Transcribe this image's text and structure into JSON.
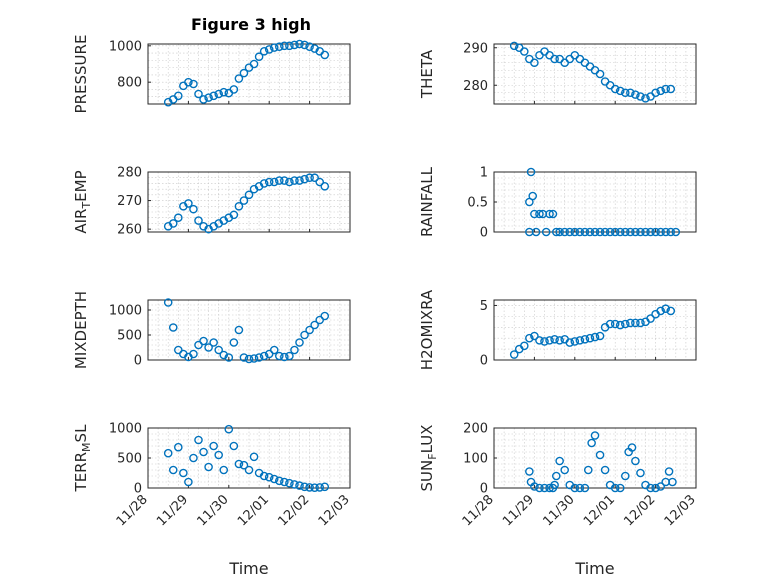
{
  "figure": {
    "title": "Figure 3 high"
  },
  "chart_data": [
    {
      "type": "scatter",
      "ylabel": "PRESSURE",
      "ylim": [
        680,
        1010
      ],
      "yticks": [
        800,
        1000
      ],
      "grid": true,
      "color": "#0072bd",
      "x": [
        "2014-11-28T12:00",
        "2014-11-28T15:00",
        "2014-11-28T18:00",
        "2014-11-28T21:00",
        "2014-11-29T00:00",
        "2014-11-29T03:00",
        "2014-11-29T06:00",
        "2014-11-29T09:00",
        "2014-11-29T12:00",
        "2014-11-29T15:00",
        "2014-11-29T18:00",
        "2014-11-29T21:00",
        "2014-11-30T00:00",
        "2014-11-30T03:00",
        "2014-11-30T06:00",
        "2014-11-30T09:00",
        "2014-11-30T12:00",
        "2014-11-30T15:00",
        "2014-11-30T18:00",
        "2014-11-30T21:00",
        "2014-12-01T00:00",
        "2014-12-01T03:00",
        "2014-12-01T06:00",
        "2014-12-01T09:00",
        "2014-12-01T12:00",
        "2014-12-01T15:00",
        "2014-12-01T18:00",
        "2014-12-01T21:00",
        "2014-12-02T00:00",
        "2014-12-02T03:00",
        "2014-12-02T06:00",
        "2014-12-02T09:00"
      ],
      "y": [
        690,
        705,
        725,
        780,
        800,
        790,
        735,
        705,
        715,
        725,
        735,
        745,
        740,
        760,
        820,
        850,
        880,
        900,
        940,
        970,
        980,
        990,
        995,
        1000,
        1000,
        1005,
        1010,
        1005,
        995,
        985,
        970,
        950
      ]
    },
    {
      "type": "scatter",
      "ylabel": "THETA",
      "ylim": [
        275,
        291
      ],
      "yticks": [
        280,
        290
      ],
      "grid": true,
      "color": "#0072bd",
      "x": [
        "2014-11-28T12:00",
        "2014-11-28T15:00",
        "2014-11-28T18:00",
        "2014-11-28T21:00",
        "2014-11-29T00:00",
        "2014-11-29T03:00",
        "2014-11-29T06:00",
        "2014-11-29T09:00",
        "2014-11-29T12:00",
        "2014-11-29T15:00",
        "2014-11-29T18:00",
        "2014-11-29T21:00",
        "2014-11-30T00:00",
        "2014-11-30T03:00",
        "2014-11-30T06:00",
        "2014-11-30T09:00",
        "2014-11-30T12:00",
        "2014-11-30T15:00",
        "2014-11-30T18:00",
        "2014-11-30T21:00",
        "2014-12-01T00:00",
        "2014-12-01T03:00",
        "2014-12-01T06:00",
        "2014-12-01T09:00",
        "2014-12-01T12:00",
        "2014-12-01T15:00",
        "2014-12-01T18:00",
        "2014-12-01T21:00",
        "2014-12-02T00:00",
        "2014-12-02T03:00",
        "2014-12-02T06:00",
        "2014-12-02T09:00"
      ],
      "y": [
        290.5,
        290,
        289,
        287,
        286,
        288,
        289,
        288,
        287,
        287,
        286,
        287,
        288,
        287,
        286,
        285,
        284,
        283,
        281,
        280,
        279,
        278.5,
        278,
        278,
        277.5,
        277,
        276.5,
        277,
        278,
        278.5,
        279,
        279
      ]
    },
    {
      "type": "scatter",
      "ylabel": "AIR_TEMP",
      "ylim": [
        259,
        280
      ],
      "yticks": [
        260,
        270,
        280
      ],
      "grid": true,
      "color": "#0072bd",
      "x": [
        "2014-11-28T12:00",
        "2014-11-28T15:00",
        "2014-11-28T18:00",
        "2014-11-28T21:00",
        "2014-11-29T00:00",
        "2014-11-29T03:00",
        "2014-11-29T06:00",
        "2014-11-29T09:00",
        "2014-11-29T12:00",
        "2014-11-29T15:00",
        "2014-11-29T18:00",
        "2014-11-29T21:00",
        "2014-11-30T00:00",
        "2014-11-30T03:00",
        "2014-11-30T06:00",
        "2014-11-30T09:00",
        "2014-11-30T12:00",
        "2014-11-30T15:00",
        "2014-11-30T18:00",
        "2014-11-30T21:00",
        "2014-12-01T00:00",
        "2014-12-01T03:00",
        "2014-12-01T06:00",
        "2014-12-01T09:00",
        "2014-12-01T12:00",
        "2014-12-01T15:00",
        "2014-12-01T18:00",
        "2014-12-01T21:00",
        "2014-12-02T00:00",
        "2014-12-02T03:00",
        "2014-12-02T06:00",
        "2014-12-02T09:00"
      ],
      "y": [
        261,
        262,
        264,
        268,
        269,
        267,
        263,
        261,
        260,
        261,
        262,
        263,
        264,
        265,
        268,
        270,
        272,
        274,
        275,
        276,
        276.5,
        276.5,
        277,
        277,
        276.5,
        277,
        277,
        277.5,
        278,
        278,
        276.5,
        275
      ]
    },
    {
      "type": "scatter",
      "ylabel": "RAINFALL",
      "ylim": [
        0,
        1
      ],
      "yticks": [
        0,
        0.5,
        1
      ],
      "grid": true,
      "color": "#0072bd",
      "x": [
        "2014-11-28T21:00",
        "2014-11-28T21:00",
        "2014-11-28T22:00",
        "2014-11-28T23:00",
        "2014-11-29T00:00",
        "2014-11-29T01:00",
        "2014-11-29T03:00",
        "2014-11-29T05:00",
        "2014-11-29T07:00",
        "2014-11-29T09:00",
        "2014-11-29T11:00",
        "2014-11-29T13:00",
        "2014-11-29T15:00",
        "2014-11-29T18:00",
        "2014-11-29T21:00",
        "2014-11-30T00:00",
        "2014-11-30T03:00",
        "2014-11-30T06:00",
        "2014-11-30T09:00",
        "2014-11-30T12:00",
        "2014-11-30T15:00",
        "2014-11-30T18:00",
        "2014-11-30T21:00",
        "2014-12-01T00:00",
        "2014-12-01T03:00",
        "2014-12-01T06:00",
        "2014-12-01T09:00",
        "2014-12-01T12:00",
        "2014-12-01T15:00",
        "2014-12-01T18:00",
        "2014-12-01T21:00",
        "2014-12-02T00:00",
        "2014-12-02T03:00",
        "2014-12-02T06:00",
        "2014-12-02T09:00",
        "2014-12-02T12:00"
      ],
      "y": [
        0,
        0.5,
        1.0,
        0.6,
        0.3,
        0,
        0.3,
        0.3,
        0,
        0.3,
        0.3,
        0,
        0,
        0,
        0,
        0,
        0,
        0,
        0,
        0,
        0,
        0,
        0,
        0,
        0,
        0,
        0,
        0,
        0,
        0,
        0,
        0,
        0,
        0,
        0,
        0
      ]
    },
    {
      "type": "scatter",
      "ylabel": "MIXDEPTH",
      "ylim": [
        0,
        1200
      ],
      "yticks": [
        0,
        500,
        1000
      ],
      "grid": true,
      "color": "#0072bd",
      "x": [
        "2014-11-28T12:00",
        "2014-11-28T15:00",
        "2014-11-28T18:00",
        "2014-11-28T21:00",
        "2014-11-29T00:00",
        "2014-11-29T03:00",
        "2014-11-29T06:00",
        "2014-11-29T09:00",
        "2014-11-29T12:00",
        "2014-11-29T15:00",
        "2014-11-29T18:00",
        "2014-11-29T21:00",
        "2014-11-30T00:00",
        "2014-11-30T03:00",
        "2014-11-30T06:00",
        "2014-11-30T09:00",
        "2014-11-30T12:00",
        "2014-11-30T15:00",
        "2014-11-30T18:00",
        "2014-11-30T21:00",
        "2014-12-01T00:00",
        "2014-12-01T03:00",
        "2014-12-01T06:00",
        "2014-12-01T09:00",
        "2014-12-01T12:00",
        "2014-12-01T15:00",
        "2014-12-01T18:00",
        "2014-12-01T21:00",
        "2014-12-02T00:00",
        "2014-12-02T03:00",
        "2014-12-02T06:00",
        "2014-12-02T09:00"
      ],
      "y": [
        1150,
        650,
        200,
        120,
        60,
        120,
        300,
        380,
        250,
        350,
        200,
        100,
        50,
        350,
        600,
        50,
        20,
        30,
        50,
        80,
        120,
        200,
        80,
        60,
        80,
        200,
        350,
        500,
        600,
        700,
        800,
        880
      ]
    },
    {
      "type": "scatter",
      "ylabel": "H2OMIXRA",
      "ylim": [
        0,
        5.5
      ],
      "yticks": [
        0,
        5
      ],
      "grid": true,
      "color": "#0072bd",
      "x": [
        "2014-11-28T12:00",
        "2014-11-28T15:00",
        "2014-11-28T18:00",
        "2014-11-28T21:00",
        "2014-11-29T00:00",
        "2014-11-29T03:00",
        "2014-11-29T06:00",
        "2014-11-29T09:00",
        "2014-11-29T12:00",
        "2014-11-29T15:00",
        "2014-11-29T18:00",
        "2014-11-29T21:00",
        "2014-11-30T00:00",
        "2014-11-30T03:00",
        "2014-11-30T06:00",
        "2014-11-30T09:00",
        "2014-11-30T12:00",
        "2014-11-30T15:00",
        "2014-11-30T18:00",
        "2014-11-30T21:00",
        "2014-12-01T00:00",
        "2014-12-01T03:00",
        "2014-12-01T06:00",
        "2014-12-01T09:00",
        "2014-12-01T12:00",
        "2014-12-01T15:00",
        "2014-12-01T18:00",
        "2014-12-01T21:00",
        "2014-12-02T00:00",
        "2014-12-02T03:00",
        "2014-12-02T06:00",
        "2014-12-02T09:00"
      ],
      "y": [
        0.5,
        1.0,
        1.3,
        2.0,
        2.2,
        1.8,
        1.7,
        1.8,
        1.9,
        1.8,
        1.9,
        1.6,
        1.7,
        1.8,
        1.9,
        2.0,
        2.1,
        2.2,
        3.0,
        3.3,
        3.3,
        3.2,
        3.3,
        3.4,
        3.4,
        3.4,
        3.5,
        3.8,
        4.2,
        4.5,
        4.7,
        4.5
      ]
    },
    {
      "type": "scatter",
      "ylabel": "TERR_MSL",
      "ylim": [
        0,
        1000
      ],
      "yticks": [
        0,
        500,
        1000
      ],
      "grid": true,
      "color": "#0072bd",
      "xticks": [
        "11/28",
        "11/29",
        "11/30",
        "12/01",
        "12/02",
        "12/03"
      ],
      "xlabel": "Time",
      "x": [
        "2014-11-28T12:00",
        "2014-11-28T15:00",
        "2014-11-28T18:00",
        "2014-11-28T21:00",
        "2014-11-29T00:00",
        "2014-11-29T03:00",
        "2014-11-29T06:00",
        "2014-11-29T09:00",
        "2014-11-29T12:00",
        "2014-11-29T15:00",
        "2014-11-29T18:00",
        "2014-11-29T21:00",
        "2014-11-30T00:00",
        "2014-11-30T03:00",
        "2014-11-30T06:00",
        "2014-11-30T09:00",
        "2014-11-30T12:00",
        "2014-11-30T15:00",
        "2014-11-30T18:00",
        "2014-11-30T21:00",
        "2014-12-01T00:00",
        "2014-12-01T03:00",
        "2014-12-01T06:00",
        "2014-12-01T09:00",
        "2014-12-01T12:00",
        "2014-12-01T15:00",
        "2014-12-01T18:00",
        "2014-12-01T21:00",
        "2014-12-02T00:00",
        "2014-12-02T03:00",
        "2014-12-02T06:00",
        "2014-12-02T09:00"
      ],
      "y": [
        580,
        300,
        680,
        250,
        100,
        500,
        800,
        600,
        350,
        700,
        550,
        300,
        980,
        700,
        400,
        380,
        300,
        520,
        250,
        200,
        180,
        150,
        120,
        100,
        80,
        60,
        40,
        20,
        10,
        5,
        10,
        20
      ]
    },
    {
      "type": "scatter",
      "ylabel": "SUN_FLUX",
      "ylim": [
        0,
        200
      ],
      "yticks": [
        0,
        100,
        200
      ],
      "grid": true,
      "color": "#0072bd",
      "xticks": [
        "11/28",
        "11/29",
        "11/30",
        "12/01",
        "12/02",
        "12/03"
      ],
      "xlabel": "Time",
      "x": [
        "2014-11-28T21:00",
        "2014-11-28T22:00",
        "2014-11-29T00:00",
        "2014-11-29T03:00",
        "2014-11-29T06:00",
        "2014-11-29T09:00",
        "2014-11-29T11:00",
        "2014-11-29T12:00",
        "2014-11-29T13:00",
        "2014-11-29T15:00",
        "2014-11-29T18:00",
        "2014-11-29T21:00",
        "2014-11-30T00:00",
        "2014-11-30T03:00",
        "2014-11-30T06:00",
        "2014-11-30T08:00",
        "2014-11-30T10:00",
        "2014-11-30T12:00",
        "2014-11-30T15:00",
        "2014-11-30T18:00",
        "2014-11-30T21:00",
        "2014-12-01T00:00",
        "2014-12-01T03:00",
        "2014-12-01T06:00",
        "2014-12-01T08:00",
        "2014-12-01T10:00",
        "2014-12-01T12:00",
        "2014-12-01T15:00",
        "2014-12-01T18:00",
        "2014-12-01T21:00",
        "2014-12-02T00:00",
        "2014-12-02T03:00",
        "2014-12-02T06:00",
        "2014-12-02T08:00",
        "2014-12-02T10:00"
      ],
      "y": [
        55,
        20,
        5,
        0,
        0,
        0,
        0,
        10,
        40,
        90,
        60,
        10,
        0,
        0,
        0,
        60,
        150,
        175,
        110,
        60,
        10,
        0,
        0,
        40,
        120,
        135,
        90,
        50,
        10,
        0,
        0,
        5,
        20,
        55,
        20
      ]
    }
  ]
}
